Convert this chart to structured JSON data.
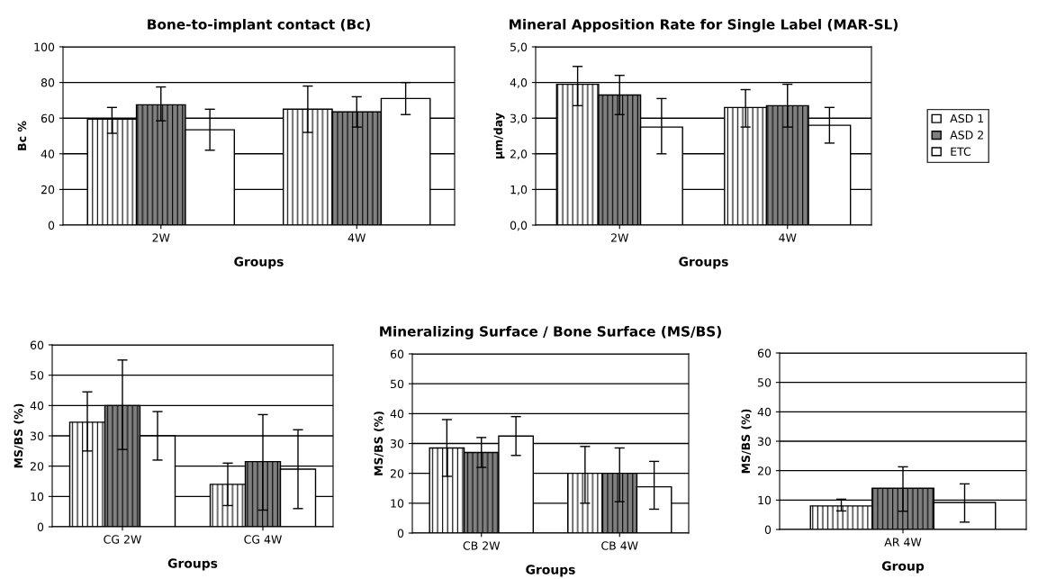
{
  "chart_data": [
    {
      "type": "bar",
      "title": "Bone-to-implant contact (Bc)",
      "xlabel": "Groups",
      "ylabel": "Bc %",
      "categories": [
        "2W",
        "4W"
      ],
      "ylim": [
        0,
        100
      ],
      "yticks": [
        0,
        20,
        40,
        60,
        80,
        100
      ],
      "grid": "y",
      "series": [
        {
          "color": "#ffffff",
          "values": [
            59.5,
            65
          ],
          "errors": [
            [
              51.5,
              66
            ],
            [
              52,
              78
            ]
          ]
        },
        {
          "color": "#808080",
          "values": [
            67.5,
            63.5
          ],
          "errors": [
            [
              58.5,
              77.5
            ],
            [
              55,
              72
            ]
          ]
        },
        {
          "color": "#ffffff",
          "values": [
            53.5,
            71
          ],
          "errors": [
            [
              42,
              65
            ],
            [
              62,
              80
            ]
          ]
        }
      ]
    },
    {
      "type": "bar",
      "title": "Mineral Apposition Rate for Single Label (MAR-SL)",
      "xlabel": "Groups",
      "ylabel": "µm/day",
      "categories": [
        "2W",
        "4W"
      ],
      "ylim": [
        0,
        5
      ],
      "yticks": [
        {
          "value": 0,
          "label": "0,0"
        },
        {
          "value": 1,
          "label": "1,0"
        },
        {
          "value": 2,
          "label": "2,0"
        },
        {
          "value": 3,
          "label": "3,0"
        },
        {
          "value": 4,
          "label": "4,0"
        },
        {
          "value": 5,
          "label": "5,0"
        }
      ],
      "grid": "y",
      "legend": "right",
      "series": [
        {
          "name": "ASD 1",
          "color": "#ffffff",
          "values": [
            3.95,
            3.3
          ],
          "errors": [
            [
              3.35,
              4.45
            ],
            [
              2.75,
              3.8
            ]
          ]
        },
        {
          "name": "ASD 2",
          "color": "#808080",
          "values": [
            3.65,
            3.35
          ],
          "errors": [
            [
              3.1,
              4.2
            ],
            [
              2.75,
              3.95
            ]
          ]
        },
        {
          "name": "ETC",
          "color": "#ffffff",
          "values": [
            2.75,
            2.8
          ],
          "errors": [
            [
              2.0,
              3.55
            ],
            [
              2.3,
              3.3
            ]
          ]
        }
      ]
    },
    {
      "type": "bar",
      "xlabel": "Groups",
      "ylabel": "MS/BS (%)",
      "categories": [
        "CG 2W",
        "CG 4W"
      ],
      "ylim": [
        0,
        60
      ],
      "yticks": [
        0,
        10,
        20,
        30,
        40,
        50,
        60
      ],
      "grid": "y",
      "series": [
        {
          "color": "#ffffff",
          "values": [
            34.5,
            14
          ],
          "errors": [
            [
              25,
              44.5
            ],
            [
              7,
              21
            ]
          ]
        },
        {
          "color": "#808080",
          "values": [
            40,
            21.5
          ],
          "errors": [
            [
              25.5,
              55
            ],
            [
              5.5,
              37
            ]
          ]
        },
        {
          "color": "#ffffff",
          "values": [
            30,
            19
          ],
          "errors": [
            [
              22,
              38
            ],
            [
              6,
              32
            ]
          ]
        }
      ]
    },
    {
      "type": "bar",
      "title": "Mineralizing Surface / Bone Surface (MS/BS)",
      "xlabel": "Groups",
      "ylabel": "MS/BS (%)",
      "categories": [
        "CB 2W",
        "CB 4W"
      ],
      "ylim": [
        0,
        60
      ],
      "yticks": [
        0,
        10,
        20,
        30,
        40,
        50,
        60
      ],
      "grid": "y",
      "series": [
        {
          "color": "#ffffff",
          "values": [
            28.5,
            20
          ],
          "errors": [
            [
              19,
              38
            ],
            [
              10,
              29
            ]
          ]
        },
        {
          "color": "#808080",
          "values": [
            27,
            20
          ],
          "errors": [
            [
              22,
              32
            ],
            [
              10.5,
              28.5
            ]
          ]
        },
        {
          "color": "#ffffff",
          "values": [
            32.5,
            15.5
          ],
          "errors": [
            [
              26,
              39
            ],
            [
              8,
              24
            ]
          ]
        }
      ]
    },
    {
      "type": "bar",
      "xlabel": "Group",
      "ylabel": "MS/BS (%)",
      "categories": [
        "AR 4W"
      ],
      "ylim": [
        0,
        60
      ],
      "yticks": [
        0,
        10,
        20,
        30,
        40,
        50,
        60
      ],
      "grid": "y",
      "series": [
        {
          "color": "#ffffff",
          "values": [
            8
          ],
          "errors": [
            [
              6.3,
              10.3
            ]
          ]
        },
        {
          "color": "#808080",
          "values": [
            14
          ],
          "errors": [
            [
              6.2,
              21.3
            ]
          ]
        },
        {
          "color": "#ffffff",
          "values": [
            9.2
          ],
          "errors": [
            [
              2.5,
              15.5
            ]
          ]
        }
      ]
    }
  ]
}
